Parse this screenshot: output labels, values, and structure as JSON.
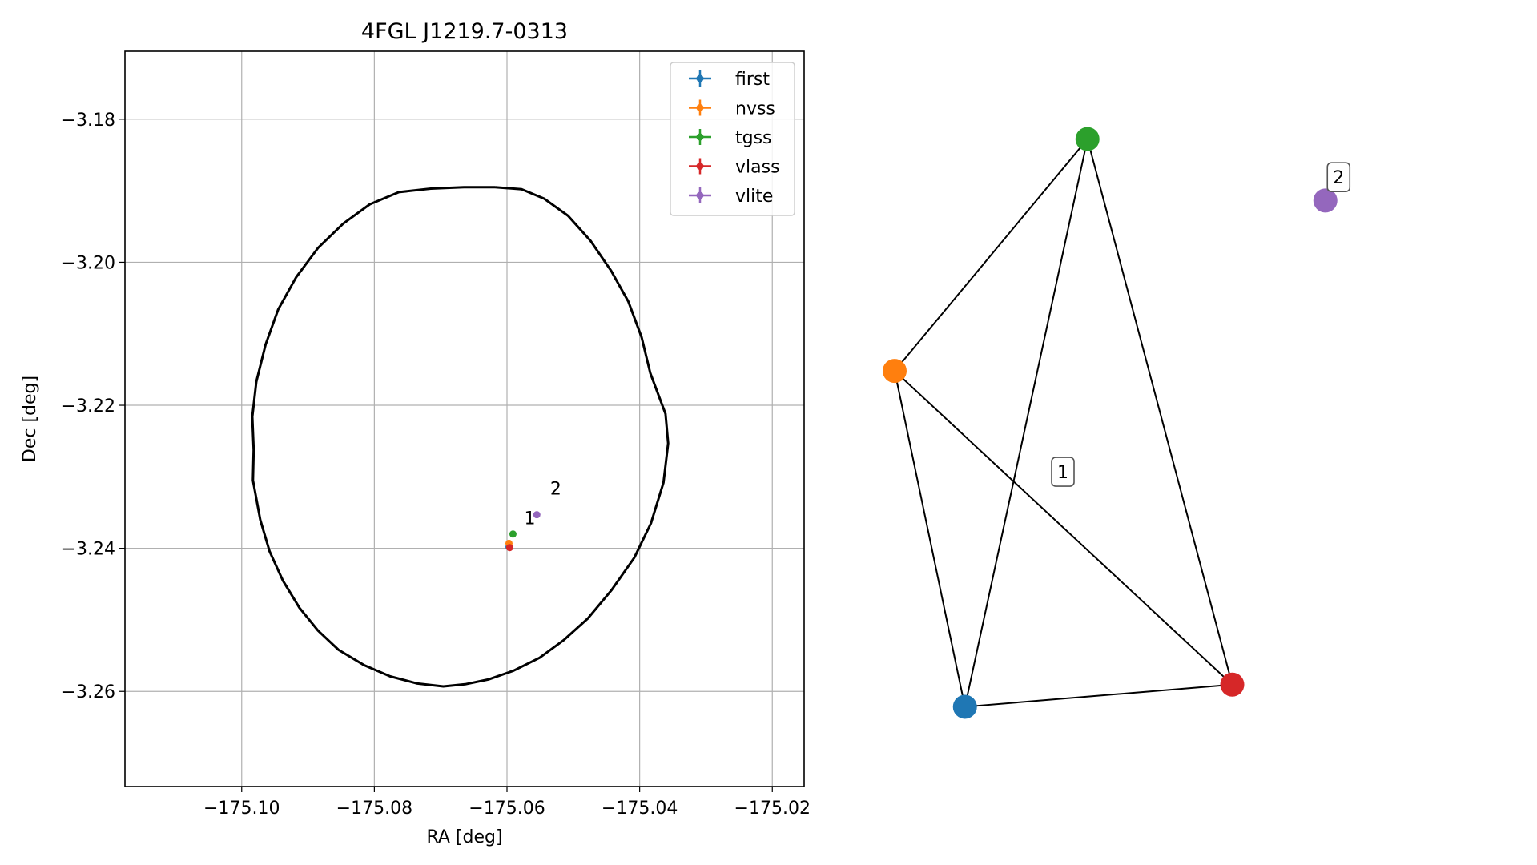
{
  "chart_data": [
    {
      "type": "scatter",
      "title": "4FGL J1219.7-0313",
      "xlabel": "RA [deg]",
      "ylabel": "Dec [deg]",
      "xlim": [
        -175.1176,
        -175.0152
      ],
      "ylim": [
        -3.2733,
        -3.1705
      ],
      "x_ticks": [
        -175.1,
        -175.08,
        -175.06,
        -175.04,
        -175.02
      ],
      "x_tick_labels": [
        "−175.10",
        "−175.08",
        "−175.06",
        "−175.04",
        "−175.02"
      ],
      "y_ticks": [
        -3.18,
        -3.2,
        -3.22,
        -3.24,
        -3.26
      ],
      "y_tick_labels": [
        "−3.18",
        "−3.20",
        "−3.22",
        "−3.24",
        "−3.26"
      ],
      "grid": true,
      "legend_position": "top-right",
      "series": [
        {
          "name": "first",
          "color": "#1f77b4",
          "x": [
            -175.0597
          ],
          "y": [
            -3.2398
          ]
        },
        {
          "name": "nvss",
          "color": "#ff7f0e",
          "x": [
            -175.0597
          ],
          "y": [
            -3.2393
          ]
        },
        {
          "name": "tgss",
          "color": "#2ca02c",
          "x": [
            -175.0591
          ],
          "y": [
            -3.238
          ]
        },
        {
          "name": "vlass",
          "color": "#d62728",
          "x": [
            -175.0596
          ],
          "y": [
            -3.2399
          ]
        },
        {
          "name": "vlite",
          "color": "#9467bd",
          "x": [
            -175.0555
          ],
          "y": [
            -3.2353
          ]
        }
      ],
      "ellipse": {
        "color": "#000000",
        "points": [
          [
            -175.0618,
            -3.1895
          ],
          [
            -175.0578,
            -3.1898
          ],
          [
            -175.0544,
            -3.1911
          ],
          [
            -175.0508,
            -3.1935
          ],
          [
            -175.0474,
            -3.197
          ],
          [
            -175.0443,
            -3.2012
          ],
          [
            -175.0417,
            -3.2055
          ],
          [
            -175.0397,
            -3.2105
          ],
          [
            -175.0384,
            -3.2155
          ],
          [
            -175.0361,
            -3.2212
          ],
          [
            -175.0357,
            -3.2253
          ],
          [
            -175.0364,
            -3.2308
          ],
          [
            -175.0383,
            -3.2365
          ],
          [
            -175.0408,
            -3.2413
          ],
          [
            -175.0442,
            -3.2458
          ],
          [
            -175.0478,
            -3.2498
          ],
          [
            -175.0514,
            -3.2528
          ],
          [
            -175.0551,
            -3.2553
          ],
          [
            -175.059,
            -3.2571
          ],
          [
            -175.0627,
            -3.2583
          ],
          [
            -175.0663,
            -3.259
          ],
          [
            -175.0696,
            -3.2593
          ],
          [
            -175.0735,
            -3.2589
          ],
          [
            -175.0776,
            -3.2579
          ],
          [
            -175.0816,
            -3.2563
          ],
          [
            -175.0854,
            -3.2542
          ],
          [
            -175.0885,
            -3.2515
          ],
          [
            -175.0913,
            -3.2483
          ],
          [
            -175.0938,
            -3.2445
          ],
          [
            -175.0958,
            -3.2404
          ],
          [
            -175.0972,
            -3.236
          ],
          [
            -175.0983,
            -3.2305
          ],
          [
            -175.0982,
            -3.2262
          ],
          [
            -175.0984,
            -3.2216
          ],
          [
            -175.0978,
            -3.2167
          ],
          [
            -175.0964,
            -3.2115
          ],
          [
            -175.0945,
            -3.2066
          ],
          [
            -175.0918,
            -3.2021
          ],
          [
            -175.0885,
            -3.198
          ],
          [
            -175.0847,
            -3.1946
          ],
          [
            -175.0807,
            -3.1919
          ],
          [
            -175.0763,
            -3.1902
          ],
          [
            -175.0715,
            -3.1897
          ],
          [
            -175.0665,
            -3.1895
          ],
          [
            -175.0618,
            -3.1895
          ]
        ]
      },
      "annotations": [
        {
          "text": "1",
          "x": -175.0574,
          "y": -3.2366
        },
        {
          "text": "2",
          "x": -175.0535,
          "y": -3.2325
        }
      ]
    },
    {
      "type": "network",
      "nodes": [
        {
          "name": "first",
          "color": "#1f77b4",
          "x": 0.117,
          "y": 0.045
        },
        {
          "name": "nvss",
          "color": "#ff7f0e",
          "x": 0.0,
          "y": 0.591
        },
        {
          "name": "tgss",
          "color": "#2ca02c",
          "x": 0.321,
          "y": 0.968
        },
        {
          "name": "vlass",
          "color": "#d62728",
          "x": 0.562,
          "y": 0.081
        },
        {
          "name": "vlite",
          "color": "#9467bd",
          "x": 0.717,
          "y": 0.868
        }
      ],
      "edges": [
        [
          "first",
          "nvss"
        ],
        [
          "first",
          "tgss"
        ],
        [
          "first",
          "vlass"
        ],
        [
          "nvss",
          "tgss"
        ],
        [
          "nvss",
          "vlass"
        ],
        [
          "tgss",
          "vlass"
        ]
      ],
      "group_labels": [
        {
          "text": "1",
          "x": 0.28,
          "y": 0.427
        },
        {
          "text": "2",
          "x": 0.739,
          "y": 0.906
        }
      ]
    }
  ]
}
